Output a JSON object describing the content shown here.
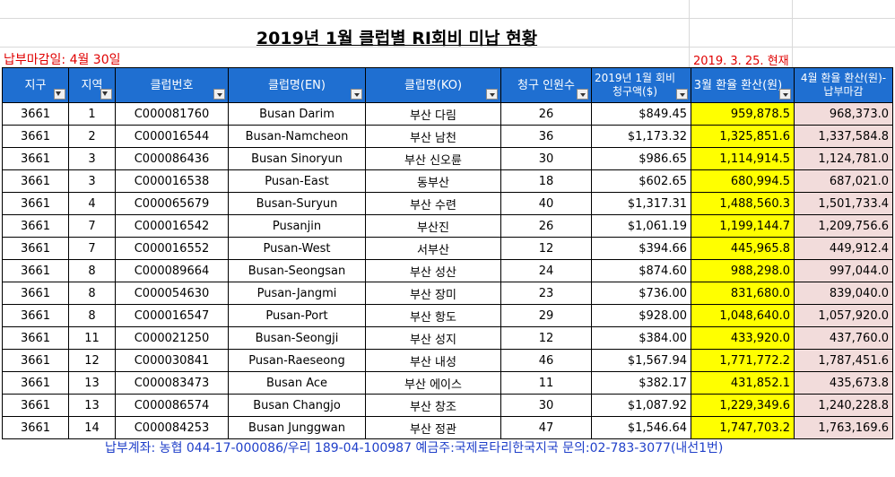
{
  "title": "2019년 1월 클럽별 RI회비 미납 현황",
  "deadline": "납부마감일: 4월 30일",
  "as_of": "2019. 3. 25. 현재",
  "headers": [
    "지구",
    "지역",
    "클럽번호",
    "클럽명(EN)",
    "클럽명(KO)",
    "청구 인원수",
    "2019년 1월  회비 청구액($)",
    "3월 환율 환산(원)",
    "4월 환율 환산(원)-납부마감"
  ],
  "rows": [
    [
      "3661",
      "1",
      "C000081760",
      "Busan Darim",
      "부산 다림",
      "26",
      "$849.45",
      "959,878.5",
      "968,373.0"
    ],
    [
      "3661",
      "2",
      "C000016544",
      "Busan-Namcheon",
      "부산 남천",
      "36",
      "$1,173.32",
      "1,325,851.6",
      "1,337,584.8"
    ],
    [
      "3661",
      "3",
      "C000086436",
      "Busan Sinoryun",
      "부산 신오륜",
      "30",
      "$986.65",
      "1,114,914.5",
      "1,124,781.0"
    ],
    [
      "3661",
      "3",
      "C000016538",
      "Pusan-East",
      "동부산",
      "18",
      "$602.65",
      "680,994.5",
      "687,021.0"
    ],
    [
      "3661",
      "4",
      "C000065679",
      "Busan-Suryun",
      "부산 수련",
      "40",
      "$1,317.31",
      "1,488,560.3",
      "1,501,733.4"
    ],
    [
      "3661",
      "7",
      "C000016542",
      "Pusanjin",
      "부산진",
      "26",
      "$1,061.19",
      "1,199,144.7",
      "1,209,756.6"
    ],
    [
      "3661",
      "7",
      "C000016552",
      "Pusan-West",
      "서부산",
      "12",
      "$394.66",
      "445,965.8",
      "449,912.4"
    ],
    [
      "3661",
      "8",
      "C000089664",
      "Busan-Seongsan",
      "부산 성산",
      "24",
      "$874.60",
      "988,298.0",
      "997,044.0"
    ],
    [
      "3661",
      "8",
      "C000054630",
      "Pusan-Jangmi",
      "부산 장미",
      "23",
      "$736.00",
      "831,680.0",
      "839,040.0"
    ],
    [
      "3661",
      "8",
      "C000016547",
      "Pusan-Port",
      "부산 항도",
      "29",
      "$928.00",
      "1,048,640.0",
      "1,057,920.0"
    ],
    [
      "3661",
      "11",
      "C000021250",
      "Busan-Seongji",
      "부산 성지",
      "12",
      "$384.00",
      "433,920.0",
      "437,760.0"
    ],
    [
      "3661",
      "12",
      "C000030841",
      "Pusan-Raeseong",
      "부산 내성",
      "46",
      "$1,567.94",
      "1,771,772.2",
      "1,787,451.6"
    ],
    [
      "3661",
      "13",
      "C000083473",
      "Busan Ace",
      "부산 에이스",
      "11",
      "$382.17",
      "431,852.1",
      "435,673.8"
    ],
    [
      "3661",
      "13",
      "C000086574",
      "Busan Changjo",
      "부산 창조",
      "30",
      "$1,087.92",
      "1,229,349.6",
      "1,240,228.8"
    ],
    [
      "3661",
      "14",
      "C000084253",
      "Busan Junggwan",
      "부산 정관",
      "47",
      "$1,546.64",
      "1,747,703.2",
      "1,763,169.6"
    ]
  ],
  "footer": "납부계좌: 농협 044-17-000086/우리 189-04-100987 예금주:국제로타리한국지국  문의:02-783-3077(내선1번)",
  "colors": {
    "header_bg": "#1f6fd1",
    "highlight_yellow": "#ffff00",
    "highlight_pink": "#f2dcdb",
    "red_text": "#e00000",
    "footer_text": "#1f3fc9"
  }
}
